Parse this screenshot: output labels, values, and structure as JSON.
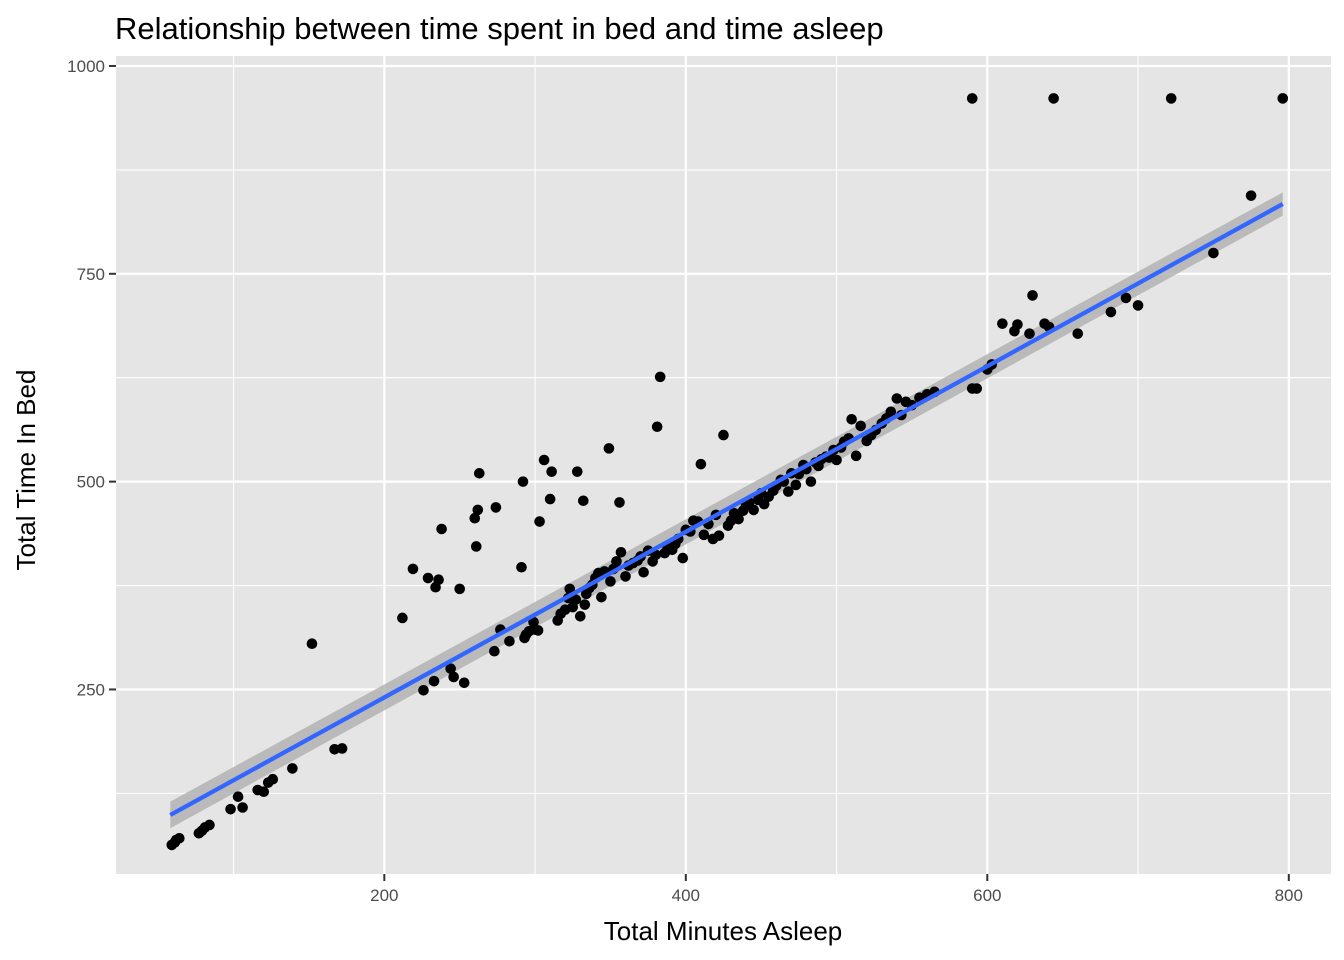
{
  "chart_data": {
    "type": "scatter",
    "title": "Relationship between time spent in bed and time asleep",
    "xlabel": "Total Minutes Asleep",
    "ylabel": "Total Time In Bed",
    "xlim": [
      22,
      828
    ],
    "ylim": [
      28,
      1012
    ],
    "x_ticks": [
      200,
      400,
      600,
      800
    ],
    "y_ticks": [
      250,
      500,
      750,
      1000
    ],
    "x_tick_labels": [
      "200",
      "400",
      "600",
      "800"
    ],
    "y_tick_labels": [
      "250",
      "500",
      "750",
      "1000"
    ],
    "grid": true,
    "legend": "none",
    "colors": {
      "panel_background": "#e5e5e5",
      "grid": "#ffffff",
      "points": "#000000",
      "smooth_line": "#3366ff",
      "confidence_band": "#b3b3b3"
    },
    "series": [
      {
        "kind": "points",
        "x": [
          59,
          61,
          62,
          64,
          77,
          79,
          81,
          84,
          98,
          103,
          106,
          116,
          120,
          123,
          126,
          139,
          152,
          167,
          172,
          212,
          219,
          226,
          229,
          233,
          234,
          236,
          238,
          244,
          246,
          250,
          253,
          260,
          261,
          262,
          263,
          273,
          274,
          277,
          283,
          291,
          292,
          293,
          294,
          296,
          299,
          300,
          302,
          303,
          306,
          310,
          311,
          315,
          317,
          320,
          322,
          323,
          325,
          327,
          328,
          330,
          332,
          333,
          334,
          336,
          338,
          340,
          342,
          344,
          346,
          349,
          350,
          352,
          354,
          356,
          357,
          360,
          362,
          365,
          368,
          370,
          372,
          375,
          378,
          380,
          381,
          383,
          386,
          388,
          391,
          393,
          395,
          398,
          400,
          403,
          405,
          408,
          410,
          412,
          415,
          418,
          420,
          422,
          425,
          428,
          430,
          432,
          435,
          438,
          440,
          442,
          445,
          448,
          450,
          452,
          455,
          458,
          460,
          463,
          465,
          468,
          470,
          473,
          475,
          478,
          480,
          483,
          486,
          488,
          490,
          493,
          495,
          498,
          500,
          503,
          505,
          508,
          510,
          513,
          516,
          520,
          523,
          526,
          530,
          533,
          536,
          540,
          543,
          546,
          550,
          555,
          560,
          565,
          590,
          593,
          600,
          603,
          610,
          618,
          620,
          628,
          630,
          638,
          641,
          660,
          682,
          692,
          700,
          750,
          775,
          590,
          644,
          722,
          796
        ],
        "y": [
          63,
          66,
          69,
          71,
          77,
          80,
          84,
          87,
          106,
          121,
          108,
          129,
          127,
          138,
          142,
          155,
          305,
          178,
          179,
          336,
          395,
          249,
          384,
          260,
          373,
          382,
          443,
          275,
          265,
          371,
          258,
          456,
          422,
          466,
          510,
          296,
          469,
          322,
          308,
          397,
          500,
          312,
          316,
          320,
          331,
          322,
          321,
          452,
          526,
          479,
          512,
          333,
          341,
          346,
          360,
          371,
          349,
          358,
          512,
          338,
          477,
          352,
          365,
          372,
          376,
          384,
          390,
          361,
          392,
          540,
          380,
          395,
          404,
          475,
          415,
          386,
          399,
          402,
          405,
          410,
          391,
          417,
          404,
          412,
          566,
          626,
          414,
          420,
          418,
          425,
          431,
          408,
          442,
          440,
          453,
          452,
          521,
          436,
          449,
          431,
          460,
          435,
          556,
          447,
          453,
          462,
          455,
          465,
          472,
          475,
          466,
          478,
          486,
          473,
          482,
          489,
          495,
          502,
          500,
          488,
          510,
          496,
          509,
          520,
          515,
          500,
          523,
          519,
          527,
          530,
          529,
          538,
          526,
          541,
          548,
          552,
          575,
          531,
          567,
          549,
          556,
          562,
          570,
          576,
          584,
          600,
          580,
          596,
          592,
          601,
          605,
          608,
          612,
          612,
          635,
          641,
          690,
          681,
          689,
          678,
          724,
          690,
          686,
          678,
          704,
          721,
          712,
          775,
          844,
          961,
          961,
          961,
          961
        ]
      },
      {
        "kind": "smooth",
        "method": "lm",
        "x": [
          58,
          796
        ],
        "y": [
          99,
          834
        ],
        "band_lower": [
          83,
          820
        ],
        "band_upper": [
          115,
          848
        ]
      }
    ]
  }
}
